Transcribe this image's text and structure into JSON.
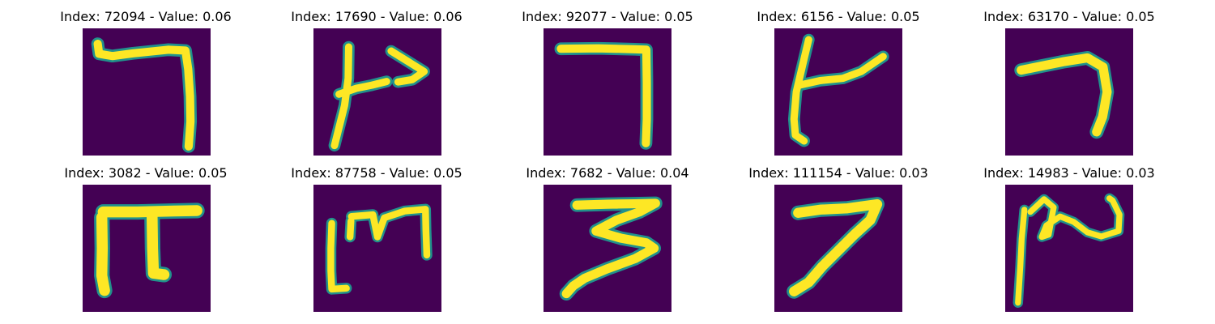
{
  "figure": {
    "background_color": "#440154",
    "stroke_color": "#fde725",
    "edge_color": "#21918c",
    "panels": [
      {
        "title": "Index: 72094 - Value: 0.06",
        "index": 72094,
        "value": 0.06,
        "glyph": "seven-shaped stroke with long top bar"
      },
      {
        "title": "Index: 17690 - Value: 0.06",
        "index": 17690,
        "value": 0.06,
        "glyph": "vertical stroke with right arrowhead"
      },
      {
        "title": "Index: 92077 - Value: 0.05",
        "index": 92077,
        "value": 0.05,
        "glyph": "seven-shaped right angle"
      },
      {
        "title": "Index: 6156 - Value: 0.05",
        "index": 6156,
        "value": 0.05,
        "glyph": "vertical stroke with branch to upper right"
      },
      {
        "title": "Index: 63170 - Value: 0.05",
        "index": 63170,
        "value": 0.05,
        "glyph": "boomerang seven"
      },
      {
        "title": "Index: 3082 - Value: 0.05",
        "index": 3082,
        "value": 0.05,
        "glyph": "pi-like shape"
      },
      {
        "title": "Index: 87758 - Value: 0.05",
        "index": 87758,
        "value": 0.05,
        "glyph": "m-like shape with bracket"
      },
      {
        "title": "Index: 7682 - Value: 0.04",
        "index": 7682,
        "value": 0.04,
        "glyph": "three-like zigzag"
      },
      {
        "title": "Index: 111154 - Value: 0.03",
        "index": 111154,
        "value": 0.03,
        "glyph": "slanted seven"
      },
      {
        "title": "Index: 14983 - Value: 0.03",
        "index": 14983,
        "value": 0.03,
        "glyph": "vertical stroke with wavy loop"
      }
    ]
  }
}
